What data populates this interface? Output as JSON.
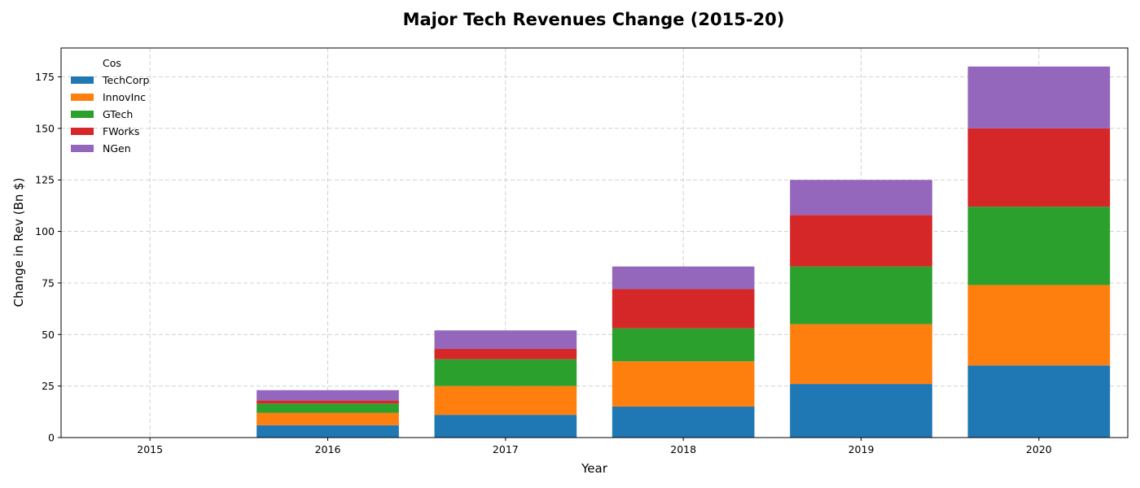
{
  "chart_data": {
    "type": "bar",
    "stacked": true,
    "title": "Major Tech Revenues Change (2015-20)",
    "xlabel": "Year",
    "ylabel": "Change in Rev (Bn $)",
    "categories": [
      "2015",
      "2016",
      "2017",
      "2018",
      "2019",
      "2020"
    ],
    "ylim": [
      0,
      189
    ],
    "yticks": [
      0,
      25,
      50,
      75,
      100,
      125,
      150,
      175
    ],
    "grid": true,
    "legend": {
      "title": "Cos",
      "placement": "top-left"
    },
    "series": [
      {
        "name": "TechCorp",
        "color": "#1f77b4",
        "values": [
          0,
          6,
          11,
          15,
          26,
          35
        ]
      },
      {
        "name": "InnovInc",
        "color": "#ff7f0e",
        "values": [
          0,
          6,
          14,
          22,
          29,
          39
        ]
      },
      {
        "name": "GTech",
        "color": "#2ca02c",
        "values": [
          0,
          4.5,
          13,
          16,
          28,
          38
        ]
      },
      {
        "name": "FWorks",
        "color": "#d62728",
        "values": [
          0,
          1.5,
          5,
          19,
          25,
          38
        ]
      },
      {
        "name": "NGen",
        "color": "#9467bd",
        "values": [
          0,
          5,
          9,
          11,
          17,
          30
        ]
      }
    ]
  }
}
